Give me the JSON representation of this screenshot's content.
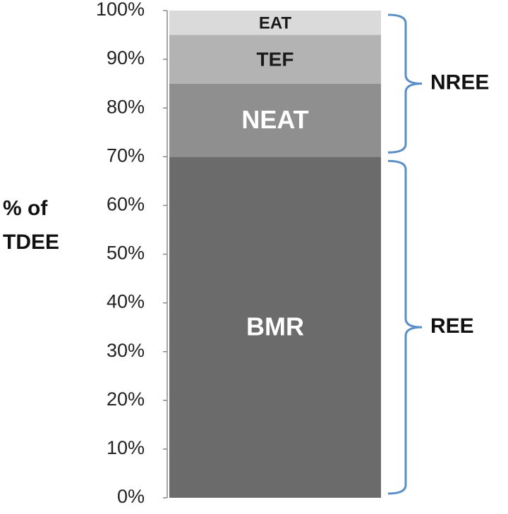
{
  "chart_data": {
    "type": "stacked-bar",
    "ylabel": "% of TDEE",
    "series": [
      {
        "name": "BMR",
        "color": "#6b6b6b",
        "label_color": "#ffffff",
        "values": [
          70
        ]
      },
      {
        "name": "NEAT",
        "color": "#8f8f8f",
        "label_color": "#ffffff",
        "values": [
          15
        ]
      },
      {
        "name": "TEF",
        "color": "#b3b3b3",
        "label_color": "#1a1a1a",
        "values": [
          10
        ]
      },
      {
        "name": "EAT",
        "color": "#dadada",
        "label_color": "#1a1a1a",
        "values": [
          5
        ]
      }
    ],
    "ylim": [
      0,
      100
    ],
    "yticks": [
      {
        "value": 0,
        "label": "0%"
      },
      {
        "value": 10,
        "label": "10%"
      },
      {
        "value": 20,
        "label": "20%"
      },
      {
        "value": 30,
        "label": "30%"
      },
      {
        "value": 40,
        "label": "40%"
      },
      {
        "value": 50,
        "label": "50%"
      },
      {
        "value": 60,
        "label": "60%"
      },
      {
        "value": 70,
        "label": "70%"
      },
      {
        "value": 80,
        "label": "80%"
      },
      {
        "value": 90,
        "label": "90%"
      },
      {
        "value": 100,
        "label": "100%"
      }
    ],
    "brackets": [
      {
        "label": "NREE",
        "from": 70,
        "to": 100,
        "color": "#5b8fc7"
      },
      {
        "label": "REE",
        "from": 0,
        "to": 70,
        "color": "#5b8fc7"
      }
    ]
  }
}
